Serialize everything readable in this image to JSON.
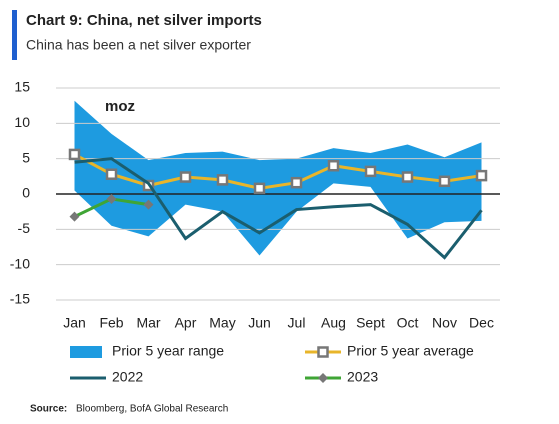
{
  "chart_data": {
    "type": "line",
    "title": "Chart 9: China, net silver imports",
    "subtitle": "China has been a net silver exporter",
    "annotation": "moz",
    "source_label": "Source:",
    "source": "Bloomberg, BofA Global Research",
    "categories": [
      "Jan",
      "Feb",
      "Mar",
      "Apr",
      "May",
      "Jun",
      "Jul",
      "Aug",
      "Sept",
      "Oct",
      "Nov",
      "Dec"
    ],
    "range": {
      "name": "Prior 5 year range",
      "color": "#1e9be0",
      "high": [
        13.2,
        8.5,
        4.8,
        5.8,
        6,
        4.8,
        5,
        6.5,
        5.8,
        7,
        5.2,
        7.3
      ],
      "low": [
        0.5,
        -4.5,
        -6,
        -1.5,
        -2.5,
        -8.7,
        -2.5,
        1.5,
        1,
        -6.3,
        -4,
        -3.8
      ]
    },
    "series": [
      {
        "name": "Prior 5 year average",
        "color": "#e8b52a",
        "marker": "square",
        "values": [
          5.6,
          2.8,
          1.2,
          2.4,
          2,
          0.8,
          1.6,
          4,
          3.2,
          2.4,
          1.8,
          2.6
        ]
      },
      {
        "name": "2022",
        "color": "#1b5e6e",
        "values": [
          4.5,
          5,
          1.5,
          -6.3,
          -2.5,
          -5.5,
          -2.2,
          -1.8,
          -1.5,
          -4.3,
          -9,
          -2.3
        ]
      },
      {
        "name": "2023",
        "color": "#3fa535",
        "marker": "diamond",
        "values": [
          -3.2,
          -0.7,
          -1.5,
          null,
          null,
          null,
          null,
          null,
          null,
          null,
          null,
          null
        ]
      }
    ],
    "ylim": [
      -15,
      15
    ],
    "yticks": [
      -15,
      -10,
      -5,
      0,
      5,
      10,
      15
    ],
    "grid": true
  }
}
